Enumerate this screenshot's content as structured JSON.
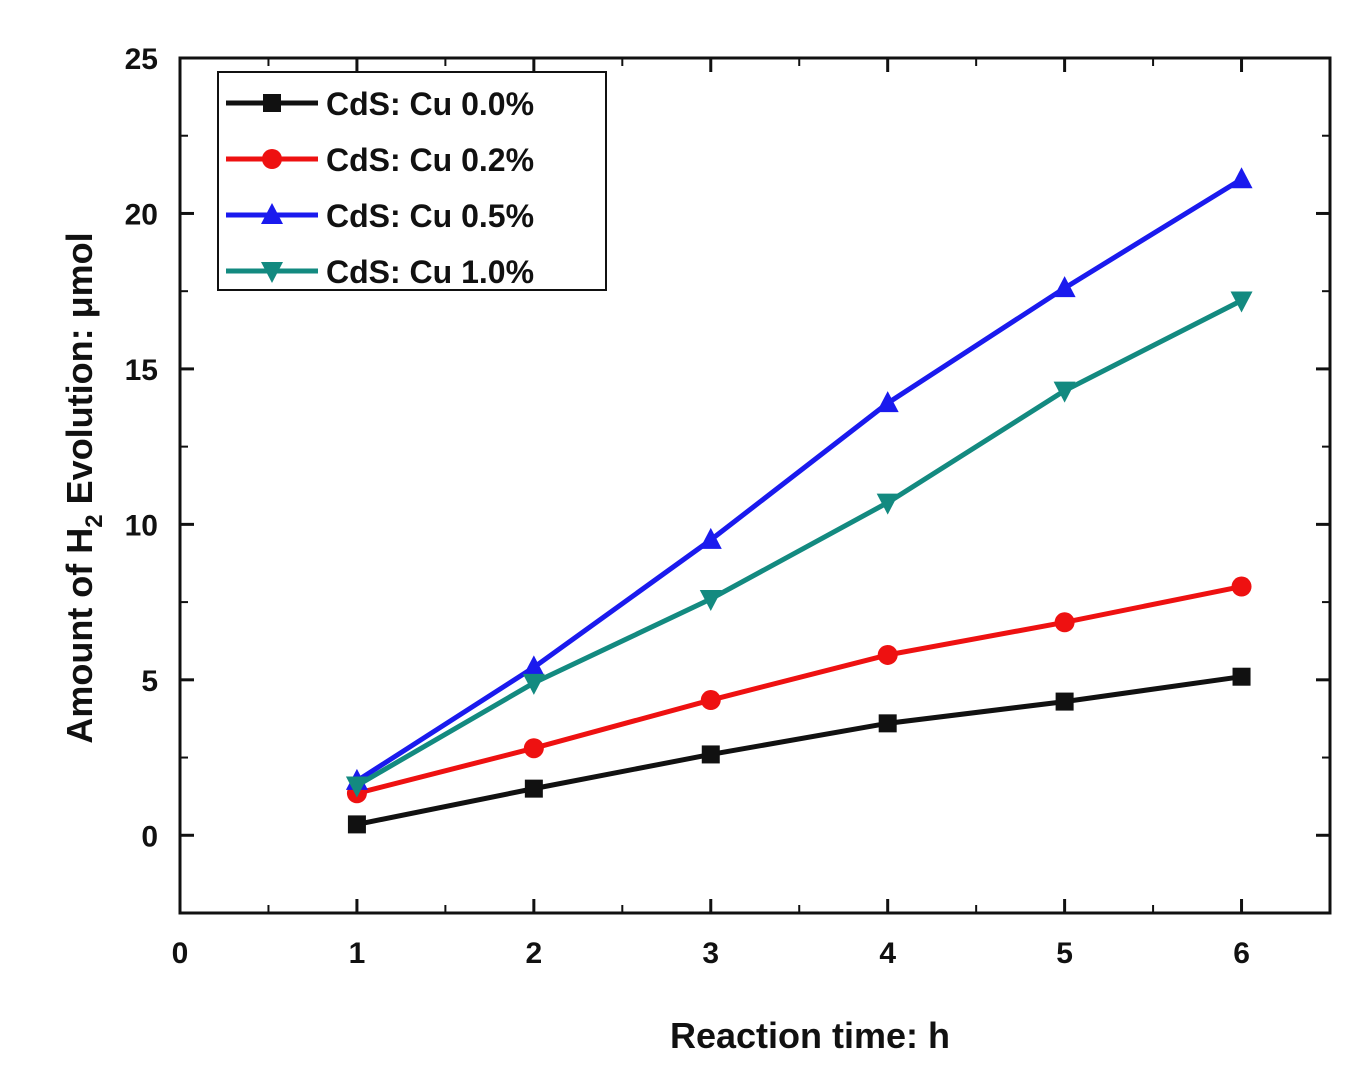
{
  "chart_data": {
    "type": "line",
    "title": "",
    "xlabel": "Reaction time: h",
    "ylabel_parts": {
      "before": "Amount of H",
      "sub": "2",
      "after": " Evolution: μmol"
    },
    "xlim": [
      0,
      6.5
    ],
    "ylim": [
      -2.5,
      25
    ],
    "xticks": [
      0,
      1,
      2,
      3,
      4,
      5,
      6
    ],
    "yticks": [
      0,
      5,
      10,
      15,
      20,
      25
    ],
    "x": [
      1,
      2,
      3,
      4,
      5,
      6
    ],
    "legend_position": "top-left",
    "series": [
      {
        "name": "CdS: Cu 0.0%",
        "color": "#111111",
        "marker": "square",
        "values": [
          0.35,
          1.5,
          2.6,
          3.6,
          4.3,
          5.1
        ]
      },
      {
        "name": "CdS: Cu 0.2%",
        "color": "#ee1111",
        "marker": "circle",
        "values": [
          1.35,
          2.8,
          4.35,
          5.8,
          6.85,
          8.0
        ]
      },
      {
        "name": "CdS: Cu 0.5%",
        "color": "#1a1aee",
        "marker": "triangle-up",
        "values": [
          1.75,
          5.4,
          9.5,
          13.9,
          17.6,
          21.1
        ]
      },
      {
        "name": "CdS: Cu 1.0%",
        "color": "#138a80",
        "marker": "triangle-down",
        "values": [
          1.6,
          4.9,
          7.6,
          10.7,
          14.3,
          17.2
        ]
      }
    ]
  }
}
